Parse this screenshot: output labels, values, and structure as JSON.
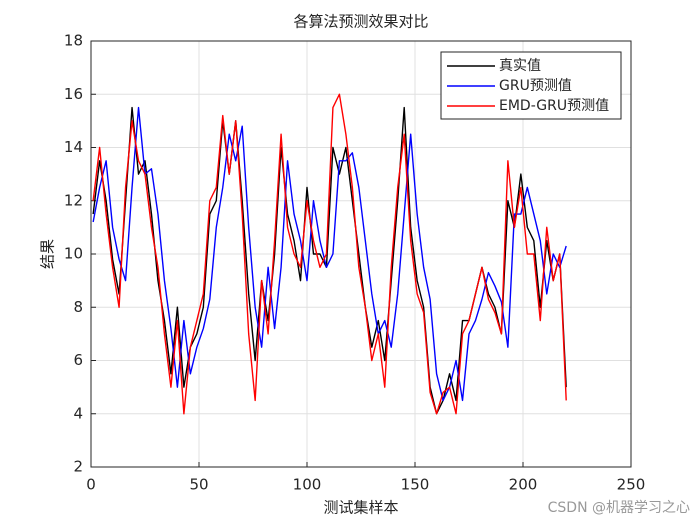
{
  "chart_data": {
    "type": "line",
    "title": "各算法预测效果对比",
    "xlabel": "测试集样本",
    "ylabel": "结果",
    "watermark": "CSDN @机器学习之心",
    "x": [
      1,
      4,
      7,
      10,
      13,
      16,
      19,
      22,
      25,
      28,
      31,
      34,
      37,
      40,
      43,
      46,
      49,
      52,
      55,
      58,
      61,
      64,
      67,
      70,
      73,
      76,
      79,
      82,
      85,
      88,
      91,
      94,
      97,
      100,
      103,
      106,
      109,
      112,
      115,
      118,
      121,
      124,
      127,
      130,
      133,
      136,
      139,
      142,
      145,
      148,
      151,
      154,
      157,
      160,
      163,
      166,
      169,
      172,
      175,
      178,
      181,
      184,
      187,
      190,
      193,
      196,
      199,
      202,
      205,
      208,
      211,
      214,
      217,
      220
    ],
    "series": [
      {
        "name": "真实值",
        "color": "#000000",
        "values": [
          11.5,
          13.5,
          12,
          9.8,
          8.5,
          12,
          15.5,
          13,
          13.5,
          11.5,
          9,
          7.5,
          5.5,
          8,
          5,
          6.5,
          7,
          8,
          11.5,
          12,
          15,
          13,
          15,
          12,
          8.5,
          6,
          9,
          7.5,
          10,
          14,
          11.5,
          10.5,
          9,
          12.5,
          10,
          10,
          9.5,
          14,
          13,
          14,
          12,
          10,
          8,
          6.5,
          7.5,
          6,
          9,
          12,
          15.5,
          11,
          9,
          8,
          5,
          4,
          4.5,
          5.5,
          4.5,
          7.5,
          7.5,
          8.5,
          9.5,
          8.5,
          8,
          7,
          12,
          11,
          13,
          11,
          10.5,
          8,
          10.5,
          9,
          10,
          5
        ]
      },
      {
        "name": "GRU预测值",
        "color": "#0000ff",
        "values": [
          11.2,
          12.5,
          13.5,
          11,
          9.8,
          9,
          12.5,
          15.5,
          13,
          13.2,
          11.5,
          9,
          7.2,
          5,
          7.5,
          5.5,
          6.5,
          7.2,
          8.3,
          11,
          12.5,
          14.5,
          13.5,
          14.8,
          11,
          8,
          6.5,
          9.5,
          7.2,
          9.5,
          13.5,
          11.5,
          10.5,
          9,
          12,
          10.5,
          9.5,
          10,
          13.5,
          13.5,
          13.8,
          12.5,
          10.5,
          8.5,
          7,
          7.5,
          6.5,
          8.5,
          11.5,
          14.5,
          11.5,
          9.5,
          8.3,
          5.5,
          4.5,
          5,
          6,
          4.5,
          7,
          7.5,
          8.3,
          9.3,
          8.8,
          8.2,
          6.5,
          11.5,
          11.5,
          12.5,
          11.5,
          10.5,
          8.5,
          10,
          9.5,
          10.3
        ]
      },
      {
        "name": "EMD-GRU预测值",
        "color": "#ff0000",
        "values": [
          12,
          14,
          11.5,
          9.5,
          8,
          12.5,
          15,
          13.5,
          13,
          11,
          9.5,
          7,
          5,
          7.5,
          4,
          6.5,
          7.5,
          8.5,
          12,
          12.5,
          15.2,
          13,
          15,
          11.5,
          7,
          4.5,
          9,
          7,
          10.5,
          14.5,
          11,
          10,
          9.5,
          12,
          10.5,
          9.5,
          10,
          15.5,
          16,
          14.5,
          12.5,
          9.5,
          8,
          6,
          7,
          5,
          9.5,
          12.5,
          14.5,
          10.5,
          8.5,
          7.8,
          4.8,
          4,
          4.8,
          5,
          4,
          7,
          7.5,
          8.5,
          9.5,
          8.3,
          7.8,
          7,
          13.5,
          11,
          12.5,
          10,
          10,
          7.5,
          11,
          9,
          10,
          4.5
        ]
      }
    ],
    "xlim": [
      0,
      250
    ],
    "xticks": [
      0,
      50,
      100,
      150,
      200,
      250
    ],
    "ylim": [
      2,
      18
    ],
    "yticks": [
      2,
      4,
      6,
      8,
      10,
      12,
      14,
      16,
      18
    ],
    "grid": true,
    "legend": "top-right"
  }
}
